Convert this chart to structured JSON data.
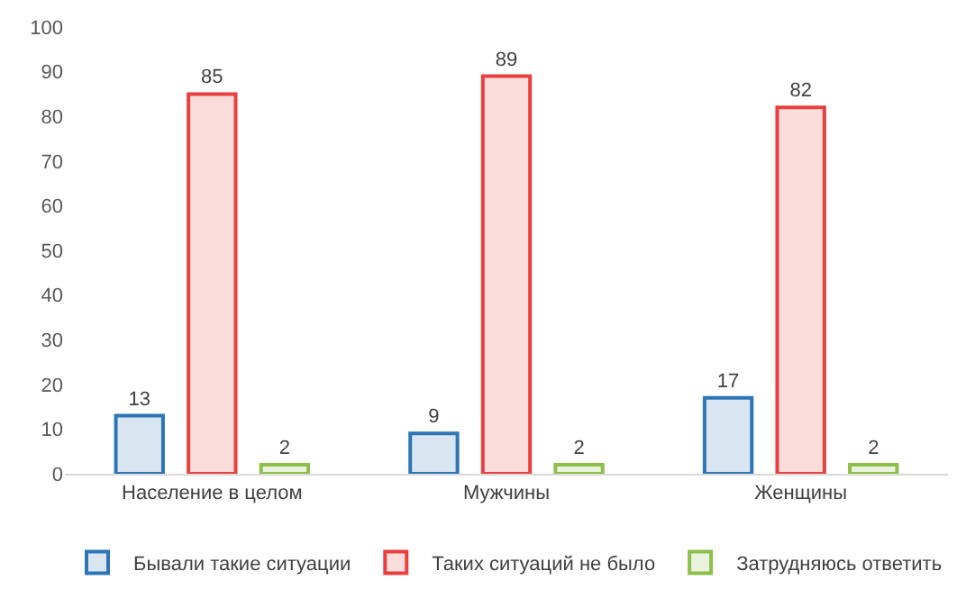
{
  "chart_data": {
    "type": "bar",
    "categories": [
      "Население в целом",
      "Мужчины",
      "Женщины"
    ],
    "series": [
      {
        "name": "Бывали такие ситуации",
        "color": "#2e75b6",
        "values": [
          13,
          9,
          17
        ]
      },
      {
        "name": "Таких ситуаций не было",
        "color": "#e8403f",
        "values": [
          85,
          89,
          82
        ]
      },
      {
        "name": "Затрудняюсь ответить",
        "color": "#8dbf4a",
        "values": [
          2,
          2,
          2
        ]
      }
    ],
    "ylim": [
      0,
      100
    ],
    "yticks": [
      0,
      10,
      20,
      30,
      40,
      50,
      60,
      70,
      80,
      90,
      100
    ],
    "legend": "bottom",
    "data_labels": true
  }
}
